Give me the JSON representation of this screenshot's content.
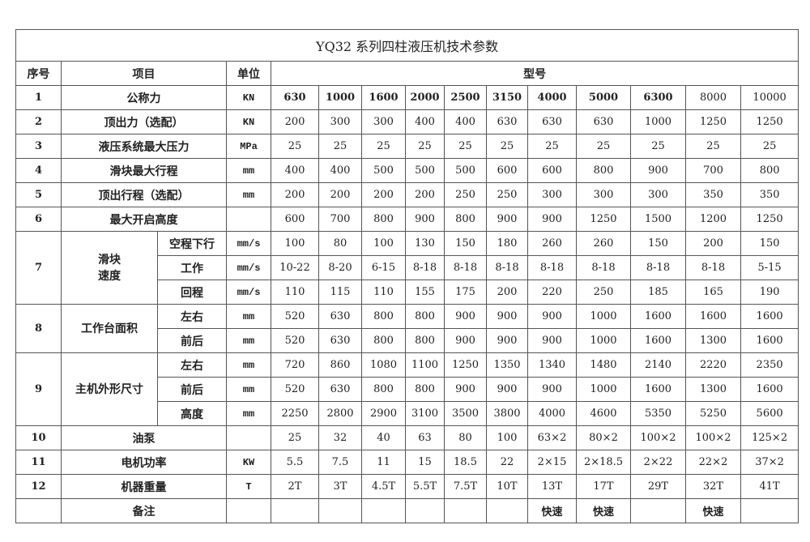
{
  "title": "YQ32 系列四柱液压机技术参数",
  "headers": {
    "no": "序号",
    "item": "项目",
    "unit": "单位",
    "model": "型号"
  },
  "models": [
    "630",
    "1000",
    "1600",
    "2000",
    "2500",
    "3150",
    "4000",
    "5000",
    "6300",
    "8000",
    "10000"
  ],
  "bold_model_count": 9,
  "models_unit": "KN",
  "rows": [
    {
      "no": "1",
      "item": "公称力",
      "unit": "KN",
      "values": [
        "630",
        "1000",
        "1600",
        "2000",
        "2500",
        "3150",
        "4000",
        "5000",
        "6300",
        "8000",
        "10000"
      ]
    },
    {
      "no": "2",
      "item": "顶出力（选配）",
      "unit": "KN",
      "values": [
        "200",
        "300",
        "300",
        "400",
        "400",
        "630",
        "630",
        "630",
        "1000",
        "1250",
        "1250"
      ]
    },
    {
      "no": "3",
      "item": "液压系统最大压力",
      "unit": "MPa",
      "values": [
        "25",
        "25",
        "25",
        "25",
        "25",
        "25",
        "25",
        "25",
        "25",
        "25",
        "25"
      ]
    },
    {
      "no": "4",
      "item": "滑块最大行程",
      "unit": "mm",
      "values": [
        "400",
        "400",
        "500",
        "500",
        "500",
        "600",
        "600",
        "800",
        "900",
        "700",
        "800"
      ]
    },
    {
      "no": "5",
      "item": "顶出行程（选配）",
      "unit": "mm",
      "values": [
        "200",
        "200",
        "200",
        "200",
        "250",
        "250",
        "300",
        "300",
        "300",
        "350",
        "350"
      ]
    },
    {
      "no": "6",
      "item": "最大开启高度",
      "unit": "",
      "values": [
        "600",
        "700",
        "800",
        "900",
        "800",
        "900",
        "900",
        "1250",
        "1500",
        "1200",
        "1250"
      ]
    },
    {
      "no": "7",
      "item": "滑块\n速度",
      "subs": [
        {
          "sub": "空程下行",
          "unit": "mm/s",
          "values": [
            "100",
            "80",
            "100",
            "130",
            "150",
            "180",
            "260",
            "260",
            "150",
            "200",
            "150"
          ]
        },
        {
          "sub": "工作",
          "unit": "mm/s",
          "values": [
            "10-22",
            "8-20",
            "6-15",
            "8-18",
            "8-18",
            "8-18",
            "8-18",
            "8-18",
            "8-18",
            "8-18",
            "5-15"
          ]
        },
        {
          "sub": "回程",
          "unit": "mm/s",
          "values": [
            "110",
            "115",
            "110",
            "155",
            "175",
            "200",
            "220",
            "250",
            "185",
            "165",
            "190"
          ]
        }
      ]
    },
    {
      "no": "8",
      "item": "工作台面积",
      "subs": [
        {
          "sub": "左右",
          "unit": "mm",
          "values": [
            "520",
            "630",
            "800",
            "800",
            "900",
            "900",
            "900",
            "1000",
            "1600",
            "1600",
            "1600"
          ]
        },
        {
          "sub": "前后",
          "unit": "mm",
          "values": [
            "520",
            "630",
            "800",
            "800",
            "900",
            "900",
            "900",
            "1000",
            "1600",
            "1300",
            "1600"
          ]
        }
      ]
    },
    {
      "no": "9",
      "item": "主机外形尺寸",
      "subs": [
        {
          "sub": "左右",
          "unit": "mm",
          "values": [
            "720",
            "860",
            "1080",
            "1100",
            "1250",
            "1350",
            "1340",
            "1480",
            "2140",
            "2220",
            "2350"
          ]
        },
        {
          "sub": "前后",
          "unit": "mm",
          "values": [
            "520",
            "630",
            "800",
            "800",
            "900",
            "900",
            "900",
            "1000",
            "1600",
            "1300",
            "1600"
          ]
        },
        {
          "sub": "高度",
          "unit": "mm",
          "values": [
            "2250",
            "2800",
            "2900",
            "3100",
            "3500",
            "3800",
            "4000",
            "4600",
            "5350",
            "5250",
            "5600"
          ]
        }
      ]
    },
    {
      "no": "10",
      "item": "油泵",
      "unit": "",
      "values": [
        "25",
        "32",
        "40",
        "63",
        "80",
        "100",
        "63×2",
        "80×2",
        "100×2",
        "100×2",
        "125×2"
      ]
    },
    {
      "no": "11",
      "item": "电机功率",
      "unit": "KW",
      "values": [
        "5.5",
        "7.5",
        "11",
        "15",
        "18.5",
        "22",
        "2×15",
        "2×18.5",
        "2×22",
        "22×2",
        "37×2"
      ]
    },
    {
      "no": "12",
      "item": "机器重量",
      "unit": "T",
      "values": [
        "2T",
        "3T",
        "4.5T",
        "5.5T",
        "7.5T",
        "10T",
        "13T",
        "17T",
        "29T",
        "32T",
        "41T"
      ]
    },
    {
      "no": "",
      "item": "备注",
      "unit": "",
      "values": [
        "",
        "",
        "",
        "",
        "",
        "",
        "快速",
        "快速",
        "",
        "快速",
        ""
      ],
      "bold_values": true
    }
  ]
}
